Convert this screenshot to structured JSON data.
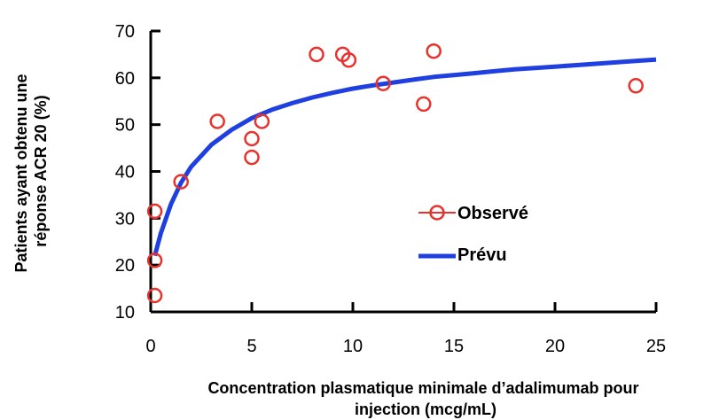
{
  "chart_data": {
    "type": "scatter",
    "xlabel": [
      "Concentration plasmatique minimale d’adalimumab pour",
      "injection (mcg/mL)"
    ],
    "ylabel": [
      "Patients ayant obtenu une",
      "réponse ACR 20 (%)"
    ],
    "xlim": [
      0,
      25
    ],
    "ylim": [
      10,
      70
    ],
    "xticks": [
      0,
      5,
      10,
      15,
      20,
      25
    ],
    "yticks": [
      10,
      20,
      30,
      40,
      50,
      60,
      70
    ],
    "grid": false,
    "legend_position": "right-center",
    "colors": {
      "observed": "#e8322d",
      "predicted": "#1f3fe0",
      "axis": "#000000"
    },
    "series": [
      {
        "name": "Observé",
        "type": "scatter",
        "marker": "open-circle",
        "x": [
          0.2,
          0.2,
          0.2,
          1.5,
          3.3,
          5.0,
          5.0,
          5.5,
          8.2,
          9.5,
          9.8,
          11.5,
          13.5,
          14.0,
          24.0
        ],
        "y": [
          31.5,
          21.0,
          13.5,
          37.8,
          50.7,
          47.0,
          43.0,
          50.7,
          65.0,
          65.0,
          63.8,
          58.8,
          54.4,
          65.7,
          58.3
        ]
      },
      {
        "name": "Prévu",
        "type": "line",
        "x": [
          0.2,
          0.5,
          1,
          1.5,
          2,
          3,
          4,
          5,
          6,
          7,
          8,
          9,
          10,
          11,
          12,
          13,
          14,
          15,
          16,
          17,
          18,
          19,
          20,
          21,
          22,
          23,
          24,
          25
        ],
        "y": [
          22.0,
          26.8,
          33.0,
          37.6,
          41.0,
          45.7,
          48.9,
          51.4,
          53.2,
          54.6,
          55.8,
          56.8,
          57.7,
          58.4,
          59.0,
          59.6,
          60.2,
          60.6,
          61.0,
          61.4,
          61.8,
          62.1,
          62.4,
          62.7,
          63.0,
          63.3,
          63.6,
          63.9
        ]
      }
    ]
  }
}
